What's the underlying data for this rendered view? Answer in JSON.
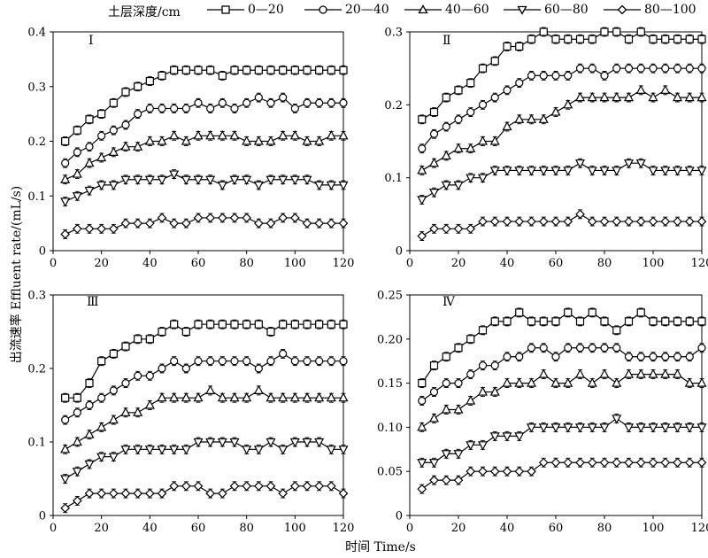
{
  "legend": {
    "title": "土层深度/cm",
    "items": [
      {
        "label": "0—20",
        "marker": "square"
      },
      {
        "label": "20—40",
        "marker": "circle"
      },
      {
        "label": "40—60",
        "marker": "triangle-up"
      },
      {
        "label": "60—80",
        "marker": "triangle-down"
      },
      {
        "label": "80—100",
        "marker": "diamond"
      }
    ]
  },
  "ylabel": "出流速率 Effluent rate/(mL/s)",
  "xlabel": "时间 Time/s",
  "chart_data": [
    {
      "type": "line",
      "panel": "Ⅰ",
      "x": [
        5,
        10,
        15,
        20,
        25,
        30,
        35,
        40,
        45,
        50,
        55,
        60,
        65,
        70,
        75,
        80,
        85,
        90,
        95,
        100,
        105,
        110,
        115,
        120
      ],
      "xlim": [
        0,
        120
      ],
      "ylim": [
        0,
        0.4
      ],
      "xticks": [
        0,
        20,
        40,
        60,
        80,
        100,
        120
      ],
      "yticks": [
        0,
        0.1,
        0.2,
        0.3,
        0.4
      ],
      "ytick_labels": [
        "0",
        "0.1",
        "0.2",
        "0.3",
        "0.4"
      ],
      "series": [
        {
          "name": "0—20",
          "values": [
            0.2,
            0.22,
            0.24,
            0.25,
            0.27,
            0.29,
            0.3,
            0.31,
            0.32,
            0.33,
            0.33,
            0.33,
            0.33,
            0.32,
            0.33,
            0.33,
            0.33,
            0.33,
            0.33,
            0.33,
            0.33,
            0.33,
            0.33,
            0.33
          ]
        },
        {
          "name": "20—40",
          "values": [
            0.16,
            0.18,
            0.19,
            0.21,
            0.22,
            0.23,
            0.25,
            0.26,
            0.26,
            0.26,
            0.26,
            0.27,
            0.26,
            0.27,
            0.26,
            0.27,
            0.28,
            0.27,
            0.28,
            0.26,
            0.27,
            0.27,
            0.27,
            0.27
          ]
        },
        {
          "name": "40—60",
          "values": [
            0.13,
            0.14,
            0.16,
            0.17,
            0.18,
            0.19,
            0.19,
            0.2,
            0.2,
            0.21,
            0.2,
            0.21,
            0.21,
            0.21,
            0.21,
            0.2,
            0.2,
            0.2,
            0.21,
            0.21,
            0.2,
            0.2,
            0.21,
            0.21
          ]
        },
        {
          "name": "60—80",
          "values": [
            0.09,
            0.1,
            0.11,
            0.12,
            0.12,
            0.13,
            0.13,
            0.13,
            0.13,
            0.14,
            0.13,
            0.13,
            0.13,
            0.12,
            0.13,
            0.13,
            0.12,
            0.13,
            0.13,
            0.13,
            0.13,
            0.12,
            0.12,
            0.12
          ]
        },
        {
          "name": "80—100",
          "values": [
            0.03,
            0.04,
            0.04,
            0.04,
            0.04,
            0.05,
            0.05,
            0.05,
            0.06,
            0.05,
            0.05,
            0.06,
            0.06,
            0.06,
            0.06,
            0.06,
            0.05,
            0.05,
            0.06,
            0.06,
            0.05,
            0.05,
            0.05,
            0.05
          ]
        }
      ]
    },
    {
      "type": "line",
      "panel": "Ⅱ",
      "x": [
        5,
        10,
        15,
        20,
        25,
        30,
        35,
        40,
        45,
        50,
        55,
        60,
        65,
        70,
        75,
        80,
        85,
        90,
        95,
        100,
        105,
        110,
        115,
        120
      ],
      "xlim": [
        0,
        120
      ],
      "ylim": [
        0,
        0.3
      ],
      "xticks": [
        0,
        20,
        40,
        60,
        80,
        100,
        120
      ],
      "yticks": [
        0,
        0.1,
        0.2,
        0.3
      ],
      "ytick_labels": [
        "0",
        "0.1",
        "0.2",
        "0.3"
      ],
      "series": [
        {
          "name": "0—20",
          "values": [
            0.18,
            0.19,
            0.21,
            0.22,
            0.23,
            0.25,
            0.26,
            0.28,
            0.28,
            0.29,
            0.3,
            0.29,
            0.29,
            0.29,
            0.29,
            0.3,
            0.3,
            0.29,
            0.3,
            0.29,
            0.29,
            0.29,
            0.29,
            0.29
          ]
        },
        {
          "name": "20—40",
          "values": [
            0.14,
            0.16,
            0.17,
            0.18,
            0.19,
            0.2,
            0.21,
            0.22,
            0.23,
            0.24,
            0.24,
            0.24,
            0.24,
            0.25,
            0.25,
            0.24,
            0.25,
            0.25,
            0.25,
            0.25,
            0.25,
            0.25,
            0.25,
            0.25
          ]
        },
        {
          "name": "40—60",
          "values": [
            0.11,
            0.12,
            0.13,
            0.14,
            0.14,
            0.15,
            0.15,
            0.17,
            0.18,
            0.18,
            0.18,
            0.19,
            0.2,
            0.21,
            0.21,
            0.21,
            0.21,
            0.21,
            0.22,
            0.21,
            0.22,
            0.21,
            0.21,
            0.21
          ]
        },
        {
          "name": "60—80",
          "values": [
            0.07,
            0.08,
            0.09,
            0.09,
            0.1,
            0.1,
            0.11,
            0.11,
            0.11,
            0.11,
            0.11,
            0.11,
            0.11,
            0.12,
            0.11,
            0.11,
            0.11,
            0.12,
            0.12,
            0.11,
            0.11,
            0.11,
            0.11,
            0.11
          ]
        },
        {
          "name": "80—100",
          "values": [
            0.02,
            0.03,
            0.03,
            0.03,
            0.03,
            0.04,
            0.04,
            0.04,
            0.04,
            0.04,
            0.04,
            0.04,
            0.04,
            0.05,
            0.04,
            0.04,
            0.04,
            0.04,
            0.04,
            0.04,
            0.04,
            0.04,
            0.04,
            0.04
          ]
        }
      ]
    },
    {
      "type": "line",
      "panel": "Ⅲ",
      "x": [
        5,
        10,
        15,
        20,
        25,
        30,
        35,
        40,
        45,
        50,
        55,
        60,
        65,
        70,
        75,
        80,
        85,
        90,
        95,
        100,
        105,
        110,
        115,
        120
      ],
      "xlim": [
        0,
        120
      ],
      "ylim": [
        0,
        0.3
      ],
      "xticks": [
        0,
        20,
        40,
        60,
        80,
        100,
        120
      ],
      "yticks": [
        0,
        0.1,
        0.2,
        0.3
      ],
      "ytick_labels": [
        "0",
        "0.1",
        "0.2",
        "0.3"
      ],
      "series": [
        {
          "name": "0—20",
          "values": [
            0.16,
            0.16,
            0.18,
            0.21,
            0.22,
            0.23,
            0.24,
            0.24,
            0.25,
            0.26,
            0.25,
            0.26,
            0.26,
            0.26,
            0.26,
            0.26,
            0.26,
            0.25,
            0.26,
            0.26,
            0.26,
            0.26,
            0.26,
            0.26
          ]
        },
        {
          "name": "20—40",
          "values": [
            0.13,
            0.14,
            0.15,
            0.16,
            0.17,
            0.18,
            0.19,
            0.19,
            0.2,
            0.21,
            0.2,
            0.21,
            0.21,
            0.21,
            0.21,
            0.21,
            0.2,
            0.21,
            0.22,
            0.21,
            0.21,
            0.21,
            0.21,
            0.21
          ]
        },
        {
          "name": "40—60",
          "values": [
            0.09,
            0.1,
            0.11,
            0.12,
            0.13,
            0.14,
            0.14,
            0.15,
            0.16,
            0.16,
            0.16,
            0.16,
            0.17,
            0.16,
            0.16,
            0.16,
            0.17,
            0.16,
            0.16,
            0.16,
            0.16,
            0.16,
            0.16,
            0.16
          ]
        },
        {
          "name": "60—80",
          "values": [
            0.05,
            0.06,
            0.07,
            0.08,
            0.08,
            0.09,
            0.09,
            0.09,
            0.09,
            0.09,
            0.09,
            0.1,
            0.1,
            0.1,
            0.1,
            0.09,
            0.09,
            0.1,
            0.09,
            0.1,
            0.1,
            0.1,
            0.09,
            0.09
          ]
        },
        {
          "name": "80—100",
          "values": [
            0.01,
            0.02,
            0.03,
            0.03,
            0.03,
            0.03,
            0.03,
            0.03,
            0.03,
            0.04,
            0.04,
            0.04,
            0.03,
            0.03,
            0.04,
            0.04,
            0.04,
            0.04,
            0.03,
            0.04,
            0.04,
            0.04,
            0.04,
            0.03
          ]
        }
      ]
    },
    {
      "type": "line",
      "panel": "Ⅳ",
      "x": [
        5,
        10,
        15,
        20,
        25,
        30,
        35,
        40,
        45,
        50,
        55,
        60,
        65,
        70,
        75,
        80,
        85,
        90,
        95,
        100,
        105,
        110,
        115,
        120
      ],
      "xlim": [
        0,
        120
      ],
      "ylim": [
        0,
        0.25
      ],
      "xticks": [
        0,
        20,
        40,
        60,
        80,
        100,
        120
      ],
      "yticks": [
        0,
        0.05,
        0.1,
        0.15,
        0.2,
        0.25
      ],
      "ytick_labels": [
        "0",
        "0.05",
        "0.10",
        "0.15",
        "0.20",
        "0.25"
      ],
      "series": [
        {
          "name": "0—20",
          "values": [
            0.15,
            0.17,
            0.18,
            0.19,
            0.2,
            0.21,
            0.22,
            0.22,
            0.23,
            0.22,
            0.22,
            0.22,
            0.23,
            0.22,
            0.23,
            0.22,
            0.21,
            0.22,
            0.23,
            0.22,
            0.22,
            0.22,
            0.22,
            0.22
          ]
        },
        {
          "name": "20—40",
          "values": [
            0.13,
            0.14,
            0.15,
            0.15,
            0.16,
            0.17,
            0.17,
            0.18,
            0.18,
            0.19,
            0.19,
            0.18,
            0.19,
            0.19,
            0.19,
            0.19,
            0.19,
            0.18,
            0.18,
            0.18,
            0.18,
            0.18,
            0.18,
            0.19
          ]
        },
        {
          "name": "40—60",
          "values": [
            0.1,
            0.11,
            0.12,
            0.12,
            0.13,
            0.14,
            0.14,
            0.15,
            0.15,
            0.15,
            0.16,
            0.15,
            0.15,
            0.16,
            0.15,
            0.16,
            0.15,
            0.16,
            0.16,
            0.16,
            0.16,
            0.16,
            0.15,
            0.15
          ]
        },
        {
          "name": "60—80",
          "values": [
            0.06,
            0.06,
            0.07,
            0.07,
            0.08,
            0.08,
            0.09,
            0.09,
            0.09,
            0.1,
            0.1,
            0.1,
            0.1,
            0.1,
            0.1,
            0.1,
            0.11,
            0.1,
            0.1,
            0.1,
            0.1,
            0.1,
            0.1,
            0.1
          ]
        },
        {
          "name": "80—100",
          "values": [
            0.03,
            0.04,
            0.04,
            0.04,
            0.05,
            0.05,
            0.05,
            0.05,
            0.05,
            0.05,
            0.06,
            0.06,
            0.06,
            0.06,
            0.06,
            0.06,
            0.06,
            0.06,
            0.06,
            0.06,
            0.06,
            0.06,
            0.06,
            0.06
          ]
        }
      ]
    }
  ]
}
